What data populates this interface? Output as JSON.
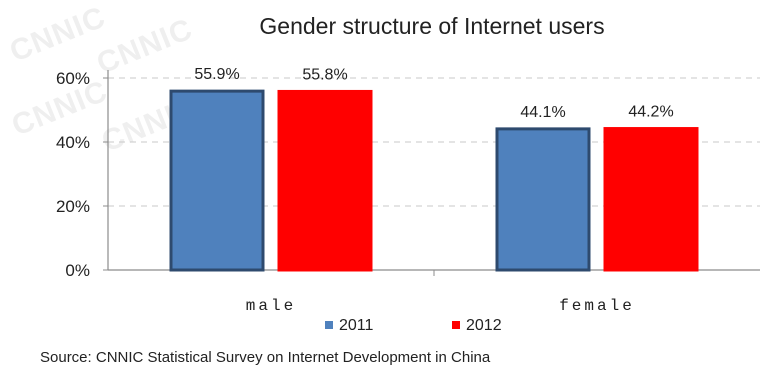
{
  "watermark": {
    "text": "CNNIC"
  },
  "chart_data": {
    "type": "bar",
    "title": "Gender structure of Internet users",
    "categories": [
      "male",
      "female"
    ],
    "series": [
      {
        "name": "2011",
        "values": [
          55.9,
          44.1
        ],
        "labels": [
          "55.9%",
          "44.1%"
        ],
        "color": "#4f81bd",
        "border": "#2e4a6e"
      },
      {
        "name": "2012",
        "values": [
          55.8,
          44.2
        ],
        "labels": [
          "55.8%",
          "44.2%"
        ],
        "color": "#ff0000",
        "border": "#ff0000"
      }
    ],
    "yticks": [
      {
        "value": 0,
        "label": "0%"
      },
      {
        "value": 20,
        "label": "20%"
      },
      {
        "value": 40,
        "label": "40%"
      },
      {
        "value": 60,
        "label": "60%"
      }
    ],
    "ylim": [
      0,
      60
    ],
    "grid": true,
    "legend_position": "bottom",
    "xlabel": "",
    "ylabel": ""
  },
  "source": "Source: CNNIC Statistical Survey on Internet Development in China"
}
